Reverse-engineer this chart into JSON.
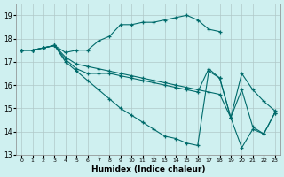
{
  "xlabel": "Humidex (Indice chaleur)",
  "bg_color": "#cff0f0",
  "grid_color": "#b0c8c8",
  "line_color": "#006b6b",
  "xlim": [
    -0.5,
    23.5
  ],
  "ylim": [
    13,
    19.5
  ],
  "yticks": [
    13,
    14,
    15,
    16,
    17,
    18,
    19
  ],
  "xticks": [
    0,
    1,
    2,
    3,
    4,
    5,
    6,
    7,
    8,
    9,
    10,
    11,
    12,
    13,
    14,
    15,
    16,
    17,
    18,
    19,
    20,
    21,
    22,
    23
  ],
  "lines": [
    {
      "x": [
        0,
        1,
        2,
        3,
        4,
        5,
        6,
        7,
        8,
        9,
        10,
        11,
        12,
        13,
        14,
        15,
        16,
        17,
        18
      ],
      "y": [
        17.5,
        17.5,
        17.6,
        17.7,
        17.4,
        17.5,
        17.5,
        17.9,
        18.1,
        18.6,
        18.6,
        18.7,
        18.7,
        18.8,
        18.9,
        19.0,
        18.8,
        18.4,
        18.3
      ]
    },
    {
      "x": [
        0,
        1,
        2,
        3,
        4,
        5,
        6,
        7,
        8,
        9,
        10,
        11,
        12,
        13,
        14,
        15,
        16,
        17,
        18,
        19,
        20,
        21,
        22,
        23
      ],
      "y": [
        17.5,
        17.5,
        17.6,
        17.7,
        17.2,
        16.9,
        16.8,
        16.7,
        16.6,
        16.5,
        16.4,
        16.3,
        16.2,
        16.1,
        16.0,
        15.9,
        15.8,
        15.7,
        15.6,
        14.6,
        16.5,
        15.8,
        15.3,
        14.9
      ]
    },
    {
      "x": [
        0,
        1,
        2,
        3,
        4,
        5,
        6,
        7,
        8,
        9,
        10,
        11,
        12,
        13,
        14,
        15,
        16,
        17,
        18,
        19,
        20,
        21,
        22,
        23
      ],
      "y": [
        17.5,
        17.5,
        17.6,
        17.7,
        17.1,
        16.7,
        16.5,
        16.5,
        16.5,
        16.4,
        16.3,
        16.2,
        16.1,
        16.0,
        15.9,
        15.8,
        15.7,
        16.7,
        16.3,
        14.6,
        15.8,
        14.2,
        13.9,
        14.8
      ]
    },
    {
      "x": [
        0,
        1,
        2,
        3,
        4,
        5,
        6,
        7,
        8,
        9,
        10,
        11,
        12,
        13,
        14,
        15,
        16,
        17,
        18,
        19,
        20,
        21,
        22,
        23
      ],
      "y": [
        17.5,
        17.5,
        17.6,
        17.7,
        17.0,
        16.6,
        16.2,
        15.8,
        15.4,
        15.0,
        14.7,
        14.4,
        14.1,
        13.8,
        13.7,
        13.5,
        13.4,
        16.6,
        16.3,
        14.6,
        13.3,
        14.1,
        13.9,
        14.8
      ]
    }
  ]
}
